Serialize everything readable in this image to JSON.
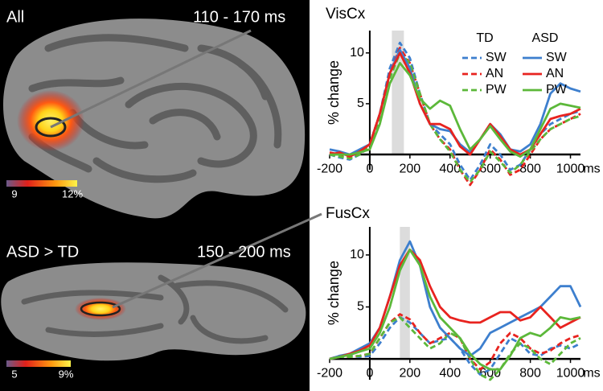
{
  "panels": [
    {
      "label": "All",
      "window": "110 - 170 ms",
      "colorbar": [
        "9",
        "12%"
      ]
    },
    {
      "label": "ASD > TD",
      "window": "150 - 200 ms",
      "colorbar": [
        "5",
        "9%"
      ]
    }
  ],
  "chart_data": [
    {
      "type": "line",
      "title": "VisCx",
      "ylabel": "% change",
      "xlabel": "ms",
      "x": [
        -200,
        -150,
        -100,
        -50,
        0,
        50,
        100,
        150,
        200,
        250,
        300,
        350,
        400,
        450,
        500,
        550,
        600,
        650,
        700,
        750,
        800,
        850,
        900,
        950,
        1000,
        1050
      ],
      "xlim": [
        -200,
        1050
      ],
      "xticks": [
        -200,
        0,
        200,
        400,
        600,
        800,
        1000
      ],
      "ylim": [
        -1.5,
        12.2
      ],
      "yticks": [
        5,
        10
      ],
      "highlight": [
        110,
        170
      ],
      "legend": true,
      "legend_groups": [
        "TD",
        "ASD"
      ],
      "series": [
        {
          "name": "SW",
          "group": "TD",
          "color": "#3d7fce",
          "dashed": true,
          "values": [
            0,
            -0.3,
            -0.5,
            0,
            1,
            4,
            8.5,
            11,
            9.5,
            6,
            3,
            2,
            1,
            -1,
            -2.5,
            -1,
            1,
            0,
            -1.5,
            -1,
            0.5,
            2,
            3,
            3.5,
            4,
            4.3
          ]
        },
        {
          "name": "AN",
          "group": "TD",
          "color": "#e8231f",
          "dashed": true,
          "values": [
            0.2,
            0,
            -0.3,
            0.2,
            1,
            4,
            8,
            10.5,
            9,
            6,
            3,
            1.5,
            0.5,
            -1.5,
            -3,
            -1.5,
            0.5,
            -0.5,
            -2,
            -1.5,
            0,
            1.5,
            2.5,
            3,
            3.5,
            4
          ]
        },
        {
          "name": "PW",
          "group": "TD",
          "color": "#5cb83a",
          "dashed": true,
          "values": [
            0,
            -0.2,
            -0.4,
            0,
            0.8,
            3.5,
            7.5,
            10,
            9,
            6,
            3,
            1.5,
            0.3,
            -1.5,
            -2.7,
            -1.5,
            0.3,
            -0.7,
            -1.8,
            -1,
            0.3,
            1.5,
            2.5,
            3,
            3.5,
            3.8
          ]
        },
        {
          "name": "SW",
          "group": "ASD",
          "color": "#3d7fce",
          "dashed": false,
          "values": [
            0.5,
            0.3,
            0,
            0.5,
            1,
            4,
            8,
            10.3,
            8.5,
            5,
            3,
            2.5,
            2.3,
            1,
            0.2,
            1.5,
            3,
            2,
            0.5,
            0.3,
            1,
            3,
            6,
            7,
            6.5,
            6.2
          ]
        },
        {
          "name": "AN",
          "group": "ASD",
          "color": "#e8231f",
          "dashed": false,
          "values": [
            0,
            0.2,
            -0.2,
            0.3,
            1,
            4,
            8,
            10,
            8,
            5,
            3,
            3,
            2.5,
            0.8,
            0,
            1.5,
            3,
            1.8,
            0.5,
            0,
            0.5,
            2,
            3.5,
            3.8,
            4,
            4.5
          ]
        },
        {
          "name": "PW",
          "group": "ASD",
          "color": "#5cb83a",
          "dashed": false,
          "values": [
            0,
            0,
            0,
            0.2,
            0.5,
            3,
            7,
            9,
            7.8,
            5.5,
            4.5,
            5.3,
            4.8,
            2.5,
            0.5,
            1.5,
            2.8,
            1.5,
            0.3,
            -0.2,
            0.5,
            2.5,
            4.5,
            5,
            4.8,
            4.6
          ]
        }
      ]
    },
    {
      "type": "line",
      "title": "FusCx",
      "ylabel": "% change",
      "xlabel": "ms",
      "x": [
        -200,
        -150,
        -100,
        -50,
        0,
        50,
        100,
        150,
        200,
        250,
        300,
        350,
        400,
        450,
        500,
        550,
        600,
        650,
        700,
        750,
        800,
        850,
        900,
        950,
        1000,
        1050
      ],
      "xlim": [
        -200,
        1050
      ],
      "xticks": [
        -200,
        0,
        200,
        400,
        600,
        800,
        1000
      ],
      "ylim": [
        -2,
        12.7
      ],
      "yticks": [
        5,
        10
      ],
      "highlight": [
        150,
        200
      ],
      "legend": false,
      "series": [
        {
          "name": "SW",
          "group": "TD",
          "color": "#3d7fce",
          "dashed": true,
          "values": [
            0,
            0.2,
            0.3,
            0.2,
            0.3,
            1.5,
            3,
            4,
            3.5,
            2.5,
            1.5,
            1.8,
            2,
            1,
            -0.5,
            -1.5,
            -1,
            0.5,
            2,
            1.5,
            0.5,
            0.3,
            1,
            1.3,
            1,
            1.5
          ]
        },
        {
          "name": "AN",
          "group": "TD",
          "color": "#e8231f",
          "dashed": true,
          "values": [
            0,
            0.3,
            0.2,
            0.3,
            0.5,
            2,
            3.5,
            4.3,
            3.8,
            2.5,
            1.5,
            2,
            2.5,
            2,
            0,
            -1,
            -0.3,
            1.5,
            2.5,
            2,
            1,
            0.5,
            0.8,
            1.5,
            2,
            2.3
          ]
        },
        {
          "name": "PW",
          "group": "TD",
          "color": "#5cb83a",
          "dashed": true,
          "values": [
            0,
            0.2,
            0.2,
            0.3,
            0.5,
            2,
            3.5,
            4,
            3,
            2,
            1,
            1.5,
            2.5,
            2,
            0,
            -1.5,
            -2,
            -1,
            0.5,
            1.5,
            1,
            0,
            -0.5,
            0.5,
            1.5,
            2
          ]
        },
        {
          "name": "SW",
          "group": "ASD",
          "color": "#3d7fce",
          "dashed": false,
          "values": [
            0,
            0.3,
            0.5,
            1,
            1.5,
            3,
            6,
            9.5,
            11.3,
            9,
            5,
            3,
            2,
            1,
            0.3,
            1,
            2.5,
            3,
            3.5,
            4,
            4.5,
            5,
            6,
            7,
            7,
            5
          ]
        },
        {
          "name": "AN",
          "group": "ASD",
          "color": "#e8231f",
          "dashed": false,
          "values": [
            0,
            0.2,
            0.5,
            0.8,
            1.3,
            3,
            6,
            9,
            10.5,
            9.5,
            7,
            5,
            4,
            3.7,
            3.5,
            3.5,
            4,
            4.5,
            4.5,
            3.7,
            4,
            5,
            4,
            3,
            3.5,
            4
          ]
        },
        {
          "name": "PW",
          "group": "ASD",
          "color": "#5cb83a",
          "dashed": false,
          "values": [
            0,
            0.2,
            0.4,
            0.7,
            1,
            2.5,
            5,
            8.5,
            10.5,
            9,
            6,
            4,
            3,
            2,
            0.5,
            -0.5,
            -1,
            -1,
            0.3,
            2,
            2.5,
            2.2,
            3,
            4,
            3.8,
            4
          ]
        }
      ]
    }
  ]
}
